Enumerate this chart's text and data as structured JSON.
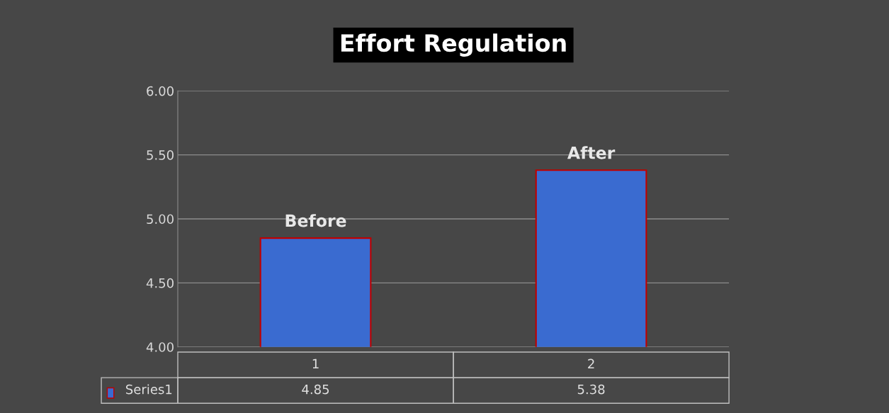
{
  "chart_data": {
    "type": "bar",
    "title": "Effort Regulation",
    "categories": [
      "1",
      "2"
    ],
    "series": [
      {
        "name": "Series1",
        "color": "#3a6bd0",
        "values": [
          4.85,
          5.38
        ]
      }
    ],
    "ylim": [
      4,
      6
    ],
    "yticks": [
      {
        "value": 4,
        "label": "4.00"
      },
      {
        "value": 4.5,
        "label": "4.50"
      },
      {
        "value": 5,
        "label": "5.00"
      },
      {
        "value": 5.5,
        "label": "5.50"
      },
      {
        "value": 6,
        "label": "6.00"
      }
    ],
    "grid": "y",
    "data_labels": true,
    "annotations": [
      {
        "text": "Before",
        "x": "1",
        "y": 4.85
      },
      {
        "text": "After",
        "x": "2",
        "y": 5.38
      }
    ]
  }
}
